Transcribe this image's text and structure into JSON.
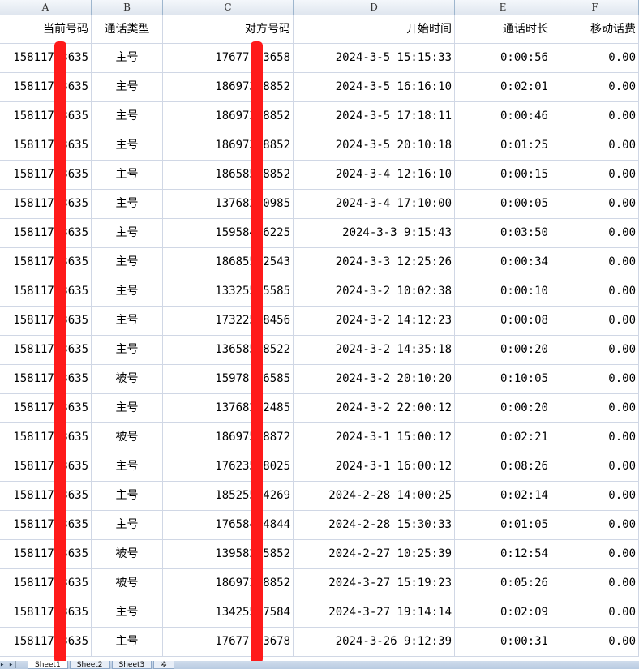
{
  "columns": [
    "A",
    "B",
    "C",
    "D",
    "E",
    "F"
  ],
  "headers": [
    "当前号码",
    "通话类型",
    "对方号码",
    "开始时间",
    "通话时长",
    "移动话费"
  ],
  "rows": [
    [
      "15811753635",
      "主号",
      "17677123658",
      "2024-3-5 15:15:33",
      "0:00:56",
      "0.00"
    ],
    [
      "15811753635",
      "主号",
      "18697378852",
      "2024-3-5 16:16:10",
      "0:02:01",
      "0.00"
    ],
    [
      "15811753635",
      "主号",
      "18697378852",
      "2024-3-5 17:18:11",
      "0:00:46",
      "0.00"
    ],
    [
      "15811753635",
      "主号",
      "18697378852",
      "2024-3-5 20:10:18",
      "0:01:25",
      "0.00"
    ],
    [
      "15811753635",
      "主号",
      "18658548852",
      "2024-3-4 12:16:10",
      "0:00:15",
      "0.00"
    ],
    [
      "15811753635",
      "主号",
      "13768250985",
      "2024-3-4 17:10:00",
      "0:00:05",
      "0.00"
    ],
    [
      "15811753635",
      "主号",
      "15958426225",
      "2024-3-3 9:15:43",
      "0:03:50",
      "0.00"
    ],
    [
      "15811753635",
      "主号",
      "18685552543",
      "2024-3-3 12:25:26",
      "0:00:34",
      "0.00"
    ],
    [
      "15811753635",
      "主号",
      "13325545585",
      "2024-3-2 10:02:38",
      "0:00:10",
      "0.00"
    ],
    [
      "15811753635",
      "主号",
      "17322538456",
      "2024-3-2 14:12:23",
      "0:00:08",
      "0.00"
    ],
    [
      "15811753635",
      "主号",
      "13658568522",
      "2024-3-2 14:35:18",
      "0:00:20",
      "0.00"
    ],
    [
      "15811753635",
      "被号",
      "15978156585",
      "2024-3-2 20:10:20",
      "0:10:05",
      "0.00"
    ],
    [
      "15811753635",
      "主号",
      "13768252485",
      "2024-3-2 22:00:12",
      "0:00:20",
      "0.00"
    ],
    [
      "15811753635",
      "被号",
      "18697598872",
      "2024-3-1 15:00:12",
      "0:02:21",
      "0.00"
    ],
    [
      "15811753635",
      "主号",
      "17623558025",
      "2024-3-1 16:00:12",
      "0:08:26",
      "0.00"
    ],
    [
      "15811753635",
      "主号",
      "18525534269",
      "2024-2-28 14:00:25",
      "0:02:14",
      "0.00"
    ],
    [
      "15811753635",
      "主号",
      "17658474844",
      "2024-2-28 15:30:33",
      "0:01:05",
      "0.00"
    ],
    [
      "15811753635",
      "被号",
      "13958265852",
      "2024-2-27 10:25:39",
      "0:12:54",
      "0.00"
    ],
    [
      "15811753635",
      "被号",
      "18697378852",
      "2024-3-27 15:19:23",
      "0:05:26",
      "0.00"
    ],
    [
      "15811753635",
      "主号",
      "13425567584",
      "2024-3-27 19:14:14",
      "0:02:09",
      "0.00"
    ],
    [
      "15811753635",
      "主号",
      "17677123678",
      "2024-3-26 9:12:39",
      "0:00:31",
      "0.00"
    ]
  ],
  "sheet_tabs": [
    "Sheet1",
    "Sheet2",
    "Sheet3"
  ],
  "nav_glyph": "▸ ▸|",
  "redaction_color": "#ff1a1a"
}
